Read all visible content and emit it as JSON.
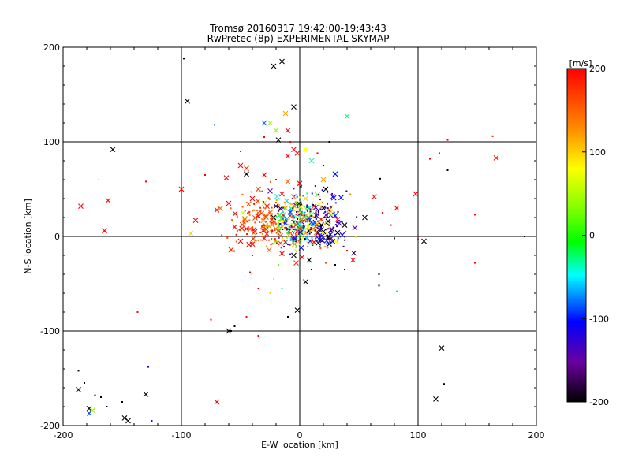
{
  "chart_data": {
    "type": "scatter",
    "title": "Tromsø 20160317 19:42:00-19:43:43",
    "subtitle": "RwPretec (8p) EXPERIMENTAL SKYMAP",
    "xlabel": "E-W location [km]",
    "ylabel": "N-S location [km]",
    "xlim": [
      -200,
      200
    ],
    "ylim": [
      -200,
      200
    ],
    "xticks": [
      "-200",
      "-100",
      "0",
      "100",
      "200"
    ],
    "yticks": [
      "-200",
      "-100",
      "0",
      "100",
      "200"
    ],
    "grid_x": [
      -100,
      0,
      100
    ],
    "grid_y": [
      -100,
      0,
      100
    ],
    "colorbar": {
      "label": "[m/s]",
      "range": [
        -200,
        200
      ],
      "ticks": [
        "200",
        "100",
        "0",
        "-100",
        "-200"
      ],
      "tick_values": [
        200,
        100,
        0,
        -100,
        -200
      ]
    },
    "points": [
      [
        -98,
        188,
        -200,
        "dot"
      ],
      [
        -95,
        143,
        -200,
        "x"
      ],
      [
        -22,
        180,
        -200,
        "x"
      ],
      [
        -15,
        185,
        -200,
        "x"
      ],
      [
        -5,
        137,
        -200,
        "x"
      ],
      [
        -12,
        130,
        120,
        "x"
      ],
      [
        -25,
        120,
        40,
        "x"
      ],
      [
        -30,
        120,
        -80,
        "x"
      ],
      [
        40,
        127,
        -20,
        "x"
      ],
      [
        -10,
        112,
        200,
        "x"
      ],
      [
        -20,
        112,
        40,
        "x"
      ],
      [
        -72,
        118,
        -90,
        "dot"
      ],
      [
        -18,
        102,
        -200,
        "x"
      ],
      [
        -158,
        92,
        -200,
        "x"
      ],
      [
        -5,
        92,
        200,
        "x"
      ],
      [
        5,
        92,
        80,
        "x"
      ],
      [
        -10,
        85,
        200,
        "x"
      ],
      [
        -2,
        88,
        190,
        "x"
      ],
      [
        10,
        80,
        -40,
        "x"
      ],
      [
        20,
        75,
        -200,
        "dot"
      ],
      [
        -50,
        75,
        200,
        "x"
      ],
      [
        -45,
        72,
        180,
        "x"
      ],
      [
        -62,
        62,
        200,
        "x"
      ],
      [
        -45,
        66,
        -200,
        "x"
      ],
      [
        -30,
        65,
        200,
        "x"
      ],
      [
        -20,
        60,
        200,
        "dot"
      ],
      [
        -10,
        58,
        150,
        "x"
      ],
      [
        0,
        56,
        200,
        "x"
      ],
      [
        30,
        66,
        -100,
        "x"
      ],
      [
        20,
        60,
        120,
        "x"
      ],
      [
        -35,
        50,
        170,
        "x"
      ],
      [
        -25,
        48,
        -150,
        "x"
      ],
      [
        -15,
        45,
        200,
        "x"
      ],
      [
        -5,
        42,
        -150,
        "x"
      ],
      [
        5,
        40,
        100,
        "x"
      ],
      [
        15,
        44,
        20,
        "x"
      ],
      [
        22,
        50,
        -200,
        "x"
      ],
      [
        28,
        42,
        -120,
        "x"
      ],
      [
        -40,
        40,
        200,
        "x"
      ],
      [
        -30,
        35,
        60,
        "x"
      ],
      [
        -20,
        32,
        -200,
        "x"
      ],
      [
        -12,
        30,
        120,
        "x"
      ],
      [
        -2,
        34,
        200,
        "x"
      ],
      [
        8,
        30,
        -60,
        "x"
      ],
      [
        12,
        32,
        180,
        "x"
      ],
      [
        20,
        30,
        -200,
        "x"
      ],
      [
        25,
        28,
        140,
        "x"
      ],
      [
        30,
        22,
        -100,
        "x"
      ],
      [
        -60,
        35,
        200,
        "x"
      ],
      [
        -70,
        28,
        200,
        "x"
      ],
      [
        -48,
        25,
        60,
        "x"
      ],
      [
        -35,
        22,
        200,
        "x"
      ],
      [
        -22,
        20,
        -200,
        "x"
      ],
      [
        -15,
        18,
        100,
        "x"
      ],
      [
        -8,
        22,
        200,
        "x"
      ],
      [
        2,
        18,
        -200,
        "x"
      ],
      [
        6,
        22,
        60,
        "x"
      ],
      [
        10,
        15,
        -160,
        "x"
      ],
      [
        18,
        18,
        200,
        "x"
      ],
      [
        24,
        16,
        -200,
        "x"
      ],
      [
        32,
        18,
        180,
        "x"
      ],
      [
        38,
        12,
        -200,
        "x"
      ],
      [
        -55,
        10,
        200,
        "x"
      ],
      [
        -45,
        8,
        200,
        "x"
      ],
      [
        -38,
        5,
        200,
        "x"
      ],
      [
        -28,
        10,
        20,
        "x"
      ],
      [
        -18,
        6,
        200,
        "x"
      ],
      [
        -10,
        8,
        -180,
        "x"
      ],
      [
        -2,
        5,
        200,
        "x"
      ],
      [
        8,
        6,
        -200,
        "x"
      ],
      [
        14,
        4,
        140,
        "x"
      ],
      [
        20,
        5,
        -200,
        "x"
      ],
      [
        26,
        2,
        -120,
        "x"
      ],
      [
        32,
        4,
        -200,
        "x"
      ],
      [
        -50,
        -5,
        200,
        "x"
      ],
      [
        -40,
        -8,
        200,
        "x"
      ],
      [
        -30,
        -2,
        200,
        "x"
      ],
      [
        -20,
        -5,
        40,
        "x"
      ],
      [
        -12,
        -6,
        200,
        "x"
      ],
      [
        -4,
        -4,
        -200,
        "x"
      ],
      [
        6,
        -2,
        -60,
        "x"
      ],
      [
        12,
        -6,
        200,
        "x"
      ],
      [
        18,
        -3,
        -200,
        "x"
      ],
      [
        25,
        -8,
        -200,
        "x"
      ],
      [
        30,
        -5,
        80,
        "x"
      ],
      [
        -5,
        -20,
        -200,
        "x"
      ],
      [
        2,
        -22,
        200,
        "x"
      ],
      [
        -3,
        -28,
        180,
        "x"
      ],
      [
        8,
        -25,
        -200,
        "x"
      ],
      [
        -15,
        -18,
        200,
        "x"
      ],
      [
        5,
        -48,
        -200,
        "x"
      ],
      [
        -2,
        -78,
        -200,
        "x"
      ],
      [
        -10,
        -85,
        -200,
        "dot"
      ],
      [
        -60,
        -100,
        -200,
        "x"
      ],
      [
        -58,
        -100,
        -200,
        "dot"
      ],
      [
        -55,
        -95,
        -200,
        "dot"
      ],
      [
        -45,
        -85,
        200,
        "dot"
      ],
      [
        -35,
        -105,
        200,
        "dot"
      ],
      [
        -75,
        -88,
        200,
        "dot"
      ],
      [
        -70,
        -175,
        200,
        "x"
      ],
      [
        -185,
        32,
        200,
        "x"
      ],
      [
        -162,
        38,
        200,
        "x"
      ],
      [
        -165,
        6,
        200,
        "x"
      ],
      [
        -170,
        60,
        60,
        "dot"
      ],
      [
        -100,
        50,
        200,
        "x"
      ],
      [
        -88,
        17,
        200,
        "x"
      ],
      [
        -92,
        3,
        100,
        "x"
      ],
      [
        -130,
        58,
        200,
        "dot"
      ],
      [
        -137,
        -80,
        200,
        "dot"
      ],
      [
        55,
        20,
        -200,
        "x"
      ],
      [
        63,
        42,
        200,
        "x"
      ],
      [
        68,
        61,
        -200,
        "dot"
      ],
      [
        82,
        30,
        200,
        "x"
      ],
      [
        77,
        12,
        200,
        "dot"
      ],
      [
        80,
        -2,
        -200,
        "dot"
      ],
      [
        70,
        25,
        200,
        "dot"
      ],
      [
        98,
        45,
        200,
        "x"
      ],
      [
        110,
        82,
        200,
        "dot"
      ],
      [
        118,
        88,
        200,
        "dot"
      ],
      [
        125,
        102,
        200,
        "dot"
      ],
      [
        125,
        70,
        -200,
        "dot"
      ],
      [
        166,
        83,
        200,
        "x"
      ],
      [
        163,
        106,
        200,
        "dot"
      ],
      [
        148,
        23,
        200,
        "dot"
      ],
      [
        105,
        -5,
        -200,
        "x"
      ],
      [
        100,
        -3,
        200,
        "dot"
      ],
      [
        148,
        -28,
        200,
        "dot"
      ],
      [
        45,
        -25,
        200,
        "x"
      ],
      [
        40,
        -15,
        200,
        "dot"
      ],
      [
        67,
        -40,
        -200,
        "dot"
      ],
      [
        67,
        -52,
        -200,
        "dot"
      ],
      [
        82,
        -58,
        -20,
        "dot"
      ],
      [
        120,
        -118,
        -200,
        "x"
      ],
      [
        122,
        -156,
        -200,
        "dot"
      ],
      [
        115,
        -172,
        -200,
        "x"
      ],
      [
        190,
        0,
        -200,
        "dot"
      ],
      [
        -187,
        -162,
        -200,
        "x"
      ],
      [
        -187,
        -142,
        -200,
        "dot"
      ],
      [
        -182,
        -155,
        -200,
        "dot"
      ],
      [
        -178,
        -182,
        -200,
        "x"
      ],
      [
        -175,
        -184,
        40,
        "x"
      ],
      [
        -178,
        -187,
        -90,
        "x"
      ],
      [
        -173,
        -168,
        -200,
        "dot"
      ],
      [
        -168,
        -170,
        -200,
        "dot"
      ],
      [
        -163,
        -180,
        -200,
        "dot"
      ],
      [
        -148,
        -192,
        -200,
        "x"
      ],
      [
        -145,
        -195,
        -200,
        "x"
      ],
      [
        -130,
        -167,
        -200,
        "x"
      ],
      [
        -128,
        -138,
        -120,
        "dot"
      ],
      [
        -125,
        -195,
        -100,
        "dot"
      ],
      [
        -150,
        -175,
        -200,
        "dot"
      ],
      [
        -40,
        -20,
        200,
        "dot"
      ],
      [
        -18,
        -30,
        20,
        "dot"
      ],
      [
        -22,
        -45,
        60,
        "dot"
      ],
      [
        -15,
        -55,
        -20,
        "dot"
      ],
      [
        -25,
        -60,
        100,
        "dot"
      ],
      [
        -35,
        -55,
        200,
        "dot"
      ],
      [
        -42,
        -38,
        200,
        "dot"
      ],
      [
        10,
        -35,
        -200,
        "dot"
      ],
      [
        30,
        -30,
        -200,
        "dot"
      ],
      [
        38,
        -35,
        -200,
        "dot"
      ],
      [
        22,
        -28,
        160,
        "dot"
      ],
      [
        15,
        88,
        200,
        "dot"
      ],
      [
        25,
        100,
        -200,
        "dot"
      ],
      [
        -8,
        100,
        200,
        "dot"
      ],
      [
        -30,
        105,
        200,
        "dot"
      ],
      [
        -50,
        90,
        200,
        "dot"
      ],
      [
        -80,
        65,
        200,
        "dot"
      ]
    ]
  }
}
